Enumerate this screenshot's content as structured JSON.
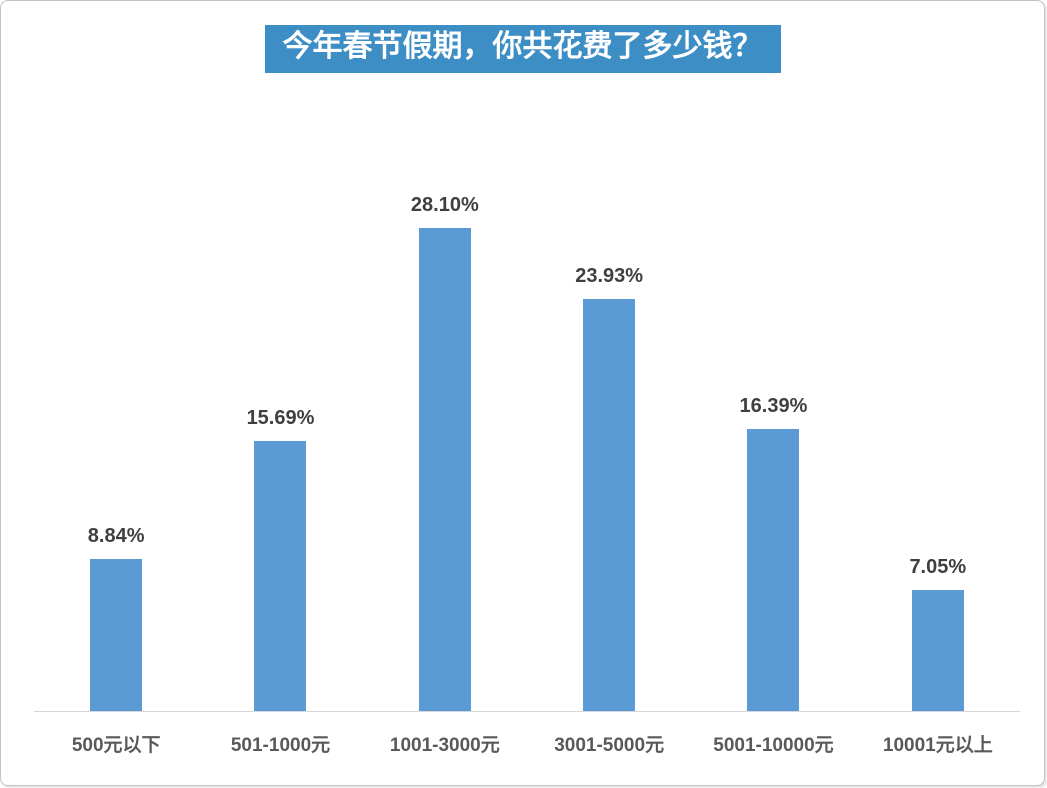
{
  "title": "今年春节假期，你共花费了多少钱？",
  "colors": {
    "title_bg": "#3e8ec6",
    "title_text": "#ffffff",
    "bar": "#5b9bd5",
    "axis": "#d6d6d6",
    "value_label": "#3f3f3f",
    "category_label": "#595959"
  },
  "chart_data": {
    "type": "bar",
    "title": "今年春节假期，你共花费了多少钱？",
    "categories": [
      "500元以下",
      "501-1000元",
      "1001-3000元",
      "3001-5000元",
      "5001-10000元",
      "10001元以上"
    ],
    "values": [
      8.84,
      15.69,
      28.1,
      23.93,
      16.39,
      7.05
    ],
    "labels": [
      "8.84%",
      "15.69%",
      "28.10%",
      "23.93%",
      "16.39%",
      "7.05%"
    ],
    "ylabel": "",
    "xlabel": "",
    "ylim": [
      0,
      30
    ],
    "grid": false,
    "legend": "none",
    "data_labels": true
  }
}
